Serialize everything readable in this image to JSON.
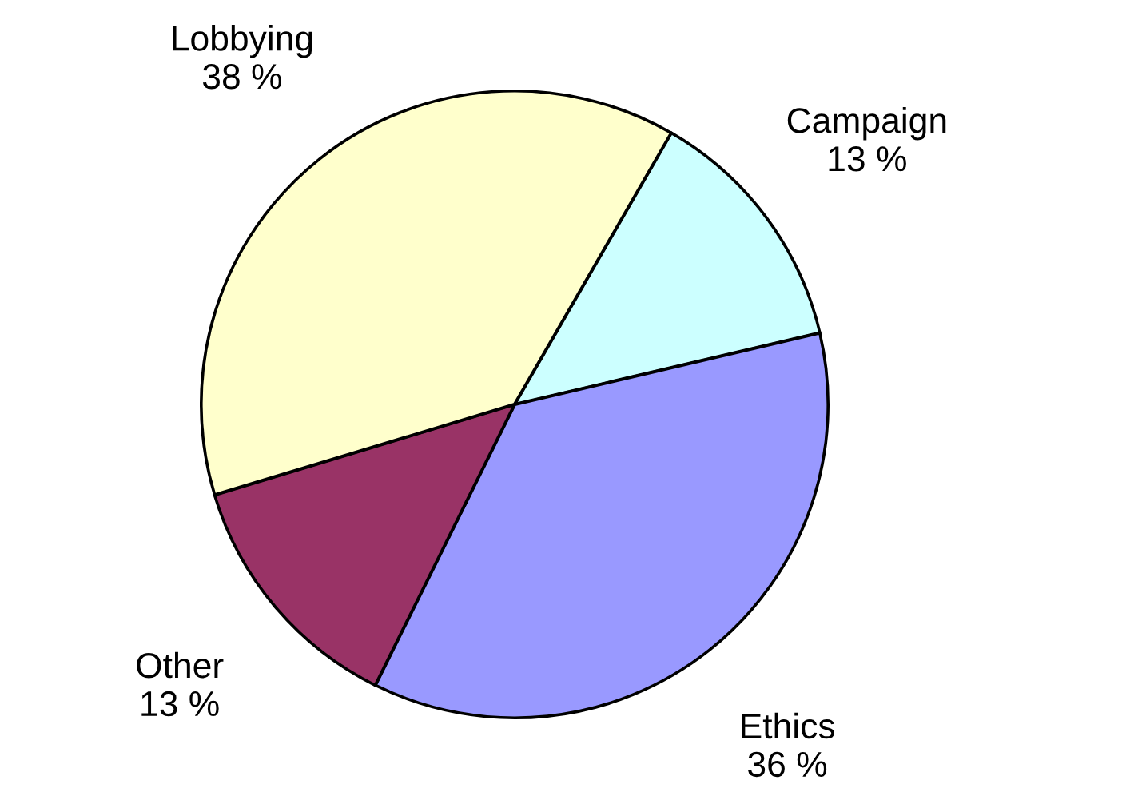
{
  "chart_data": {
    "type": "pie",
    "categories": [
      "Campaign",
      "Ethics",
      "Other",
      "Lobbying"
    ],
    "values": [
      13,
      36,
      13,
      38
    ],
    "value_labels": [
      "13 %",
      "36 %",
      "13 %",
      "38 %"
    ],
    "colors": [
      "#ccffff",
      "#9999ff",
      "#993366",
      "#ffffcc"
    ]
  }
}
